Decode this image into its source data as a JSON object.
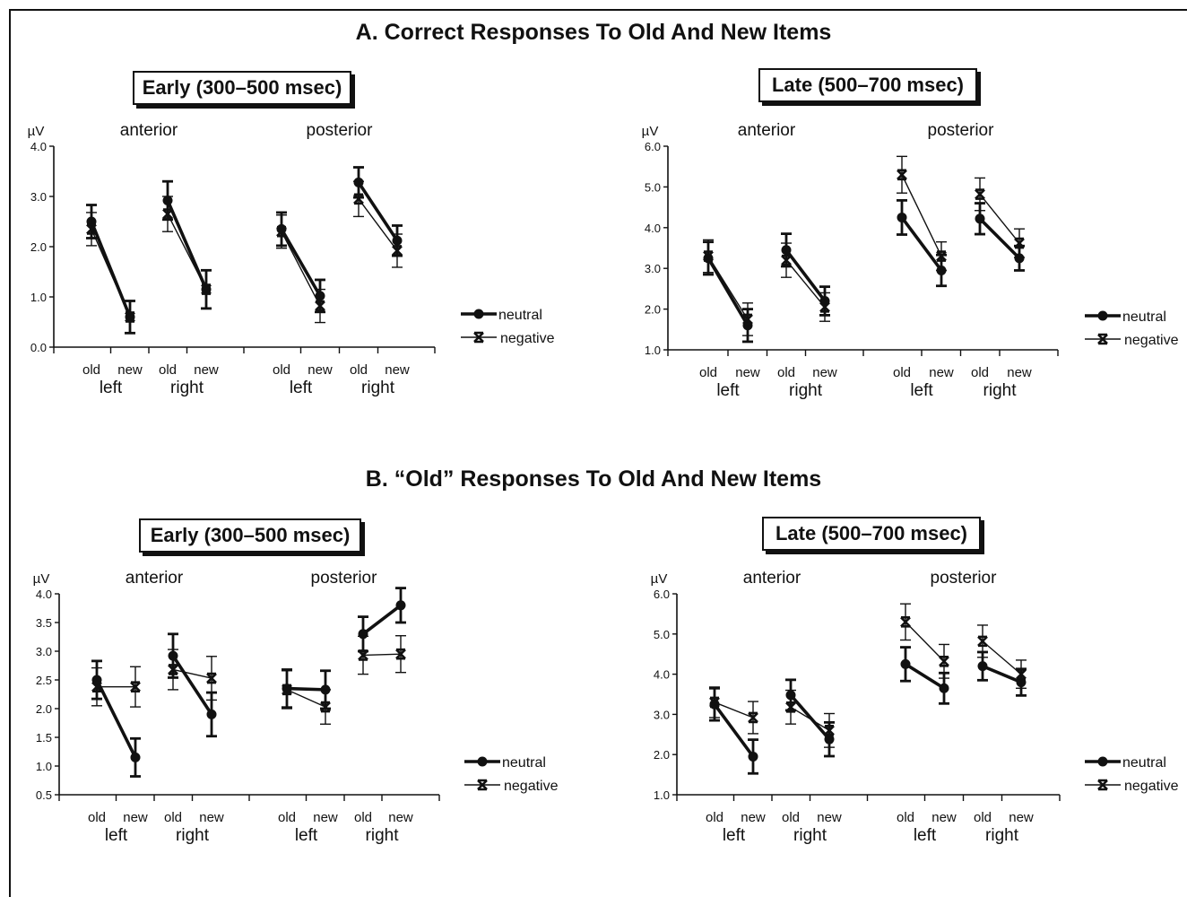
{
  "section_a_title": "A. Correct Responses To Old And New Items",
  "section_b_title": "B. “Old” Responses To Old And New Items",
  "legend": {
    "neutral": "neutral",
    "negative": "negative"
  },
  "chart_data": [
    {
      "type": "line",
      "period": "Early (300–500 msec)",
      "ylabel": "µV",
      "ylim": [
        0.0,
        4.0
      ],
      "yticks": [
        "0.0",
        "1.0",
        "2.0",
        "3.0",
        "4.0"
      ],
      "region_labels": [
        "anterior",
        "posterior"
      ],
      "hemisphere_labels": [
        "left",
        "right",
        "left",
        "right"
      ],
      "x": [
        "old",
        "new",
        "old",
        "new",
        "old",
        "new",
        "old",
        "new"
      ],
      "series": [
        {
          "name": "neutral",
          "values": [
            2.5,
            0.6,
            2.92,
            1.15,
            2.35,
            1.02,
            3.28,
            2.12
          ],
          "errors": [
            0.33,
            0.32,
            0.38,
            0.38,
            0.33,
            0.32,
            0.3,
            0.3
          ]
        },
        {
          "name": "negative",
          "values": [
            2.35,
            0.6,
            2.65,
            1.15,
            2.3,
            0.82,
            2.95,
            1.92
          ],
          "errors": [
            0.33,
            0.32,
            0.35,
            0.38,
            0.33,
            0.33,
            0.35,
            0.33
          ]
        }
      ]
    },
    {
      "type": "line",
      "period": "Late (500–700 msec)",
      "ylabel": "µV",
      "ylim": [
        1.0,
        6.0
      ],
      "yticks": [
        "1.0",
        "2.0",
        "3.0",
        "4.0",
        "5.0",
        "6.0"
      ],
      "region_labels": [
        "anterior",
        "posterior"
      ],
      "hemisphere_labels": [
        "left",
        "right",
        "left",
        "right"
      ],
      "x": [
        "old",
        "new",
        "old",
        "new",
        "old",
        "new",
        "old",
        "new"
      ],
      "series": [
        {
          "name": "neutral",
          "values": [
            3.25,
            1.6,
            3.45,
            2.2,
            4.25,
            2.95,
            4.22,
            3.25
          ],
          "errors": [
            0.4,
            0.4,
            0.4,
            0.35,
            0.42,
            0.38,
            0.38,
            0.3
          ]
        },
        {
          "name": "negative",
          "values": [
            3.3,
            1.75,
            3.2,
            2.05,
            5.3,
            3.3,
            4.82,
            3.62
          ],
          "errors": [
            0.4,
            0.4,
            0.42,
            0.35,
            0.45,
            0.35,
            0.4,
            0.35
          ]
        }
      ]
    },
    {
      "type": "line",
      "period": "Early (300–500 msec)",
      "ylabel": "µV",
      "ylim": [
        0.5,
        4.0
      ],
      "yticks": [
        "0.5",
        "1.0",
        "1.5",
        "2.0",
        "2.5",
        "3.0",
        "3.5",
        "4.0"
      ],
      "region_labels": [
        "anterior",
        "posterior"
      ],
      "hemisphere_labels": [
        "left",
        "right",
        "left",
        "right"
      ],
      "x": [
        "old",
        "new",
        "old",
        "new",
        "old",
        "new",
        "old",
        "new"
      ],
      "series": [
        {
          "name": "neutral",
          "values": [
            2.5,
            1.15,
            2.92,
            1.9,
            2.35,
            2.33,
            3.3,
            3.8
          ],
          "errors": [
            0.33,
            0.33,
            0.38,
            0.38,
            0.33,
            0.33,
            0.3,
            0.3
          ]
        },
        {
          "name": "negative",
          "values": [
            2.38,
            2.38,
            2.68,
            2.53,
            2.33,
            2.03,
            2.93,
            2.95
          ],
          "errors": [
            0.33,
            0.35,
            0.35,
            0.38,
            0.33,
            0.3,
            0.33,
            0.32
          ]
        }
      ]
    },
    {
      "type": "line",
      "period": "Late (500–700 msec)",
      "ylabel": "µV",
      "ylim": [
        1.0,
        6.0
      ],
      "yticks": [
        "1.0",
        "2.0",
        "3.0",
        "4.0",
        "5.0",
        "6.0"
      ],
      "region_labels": [
        "anterior",
        "posterior"
      ],
      "hemisphere_labels": [
        "left",
        "right",
        "left",
        "right"
      ],
      "x": [
        "old",
        "new",
        "old",
        "new",
        "old",
        "new",
        "old",
        "new"
      ],
      "series": [
        {
          "name": "neutral",
          "values": [
            3.25,
            1.95,
            3.48,
            2.38,
            4.25,
            3.65,
            4.2,
            3.8
          ],
          "errors": [
            0.4,
            0.42,
            0.38,
            0.42,
            0.42,
            0.38,
            0.35,
            0.33
          ]
        },
        {
          "name": "negative",
          "values": [
            3.3,
            2.92,
            3.18,
            2.6,
            5.3,
            4.32,
            4.82,
            4.0
          ],
          "errors": [
            0.38,
            0.4,
            0.42,
            0.42,
            0.45,
            0.42,
            0.4,
            0.35
          ]
        }
      ]
    }
  ]
}
